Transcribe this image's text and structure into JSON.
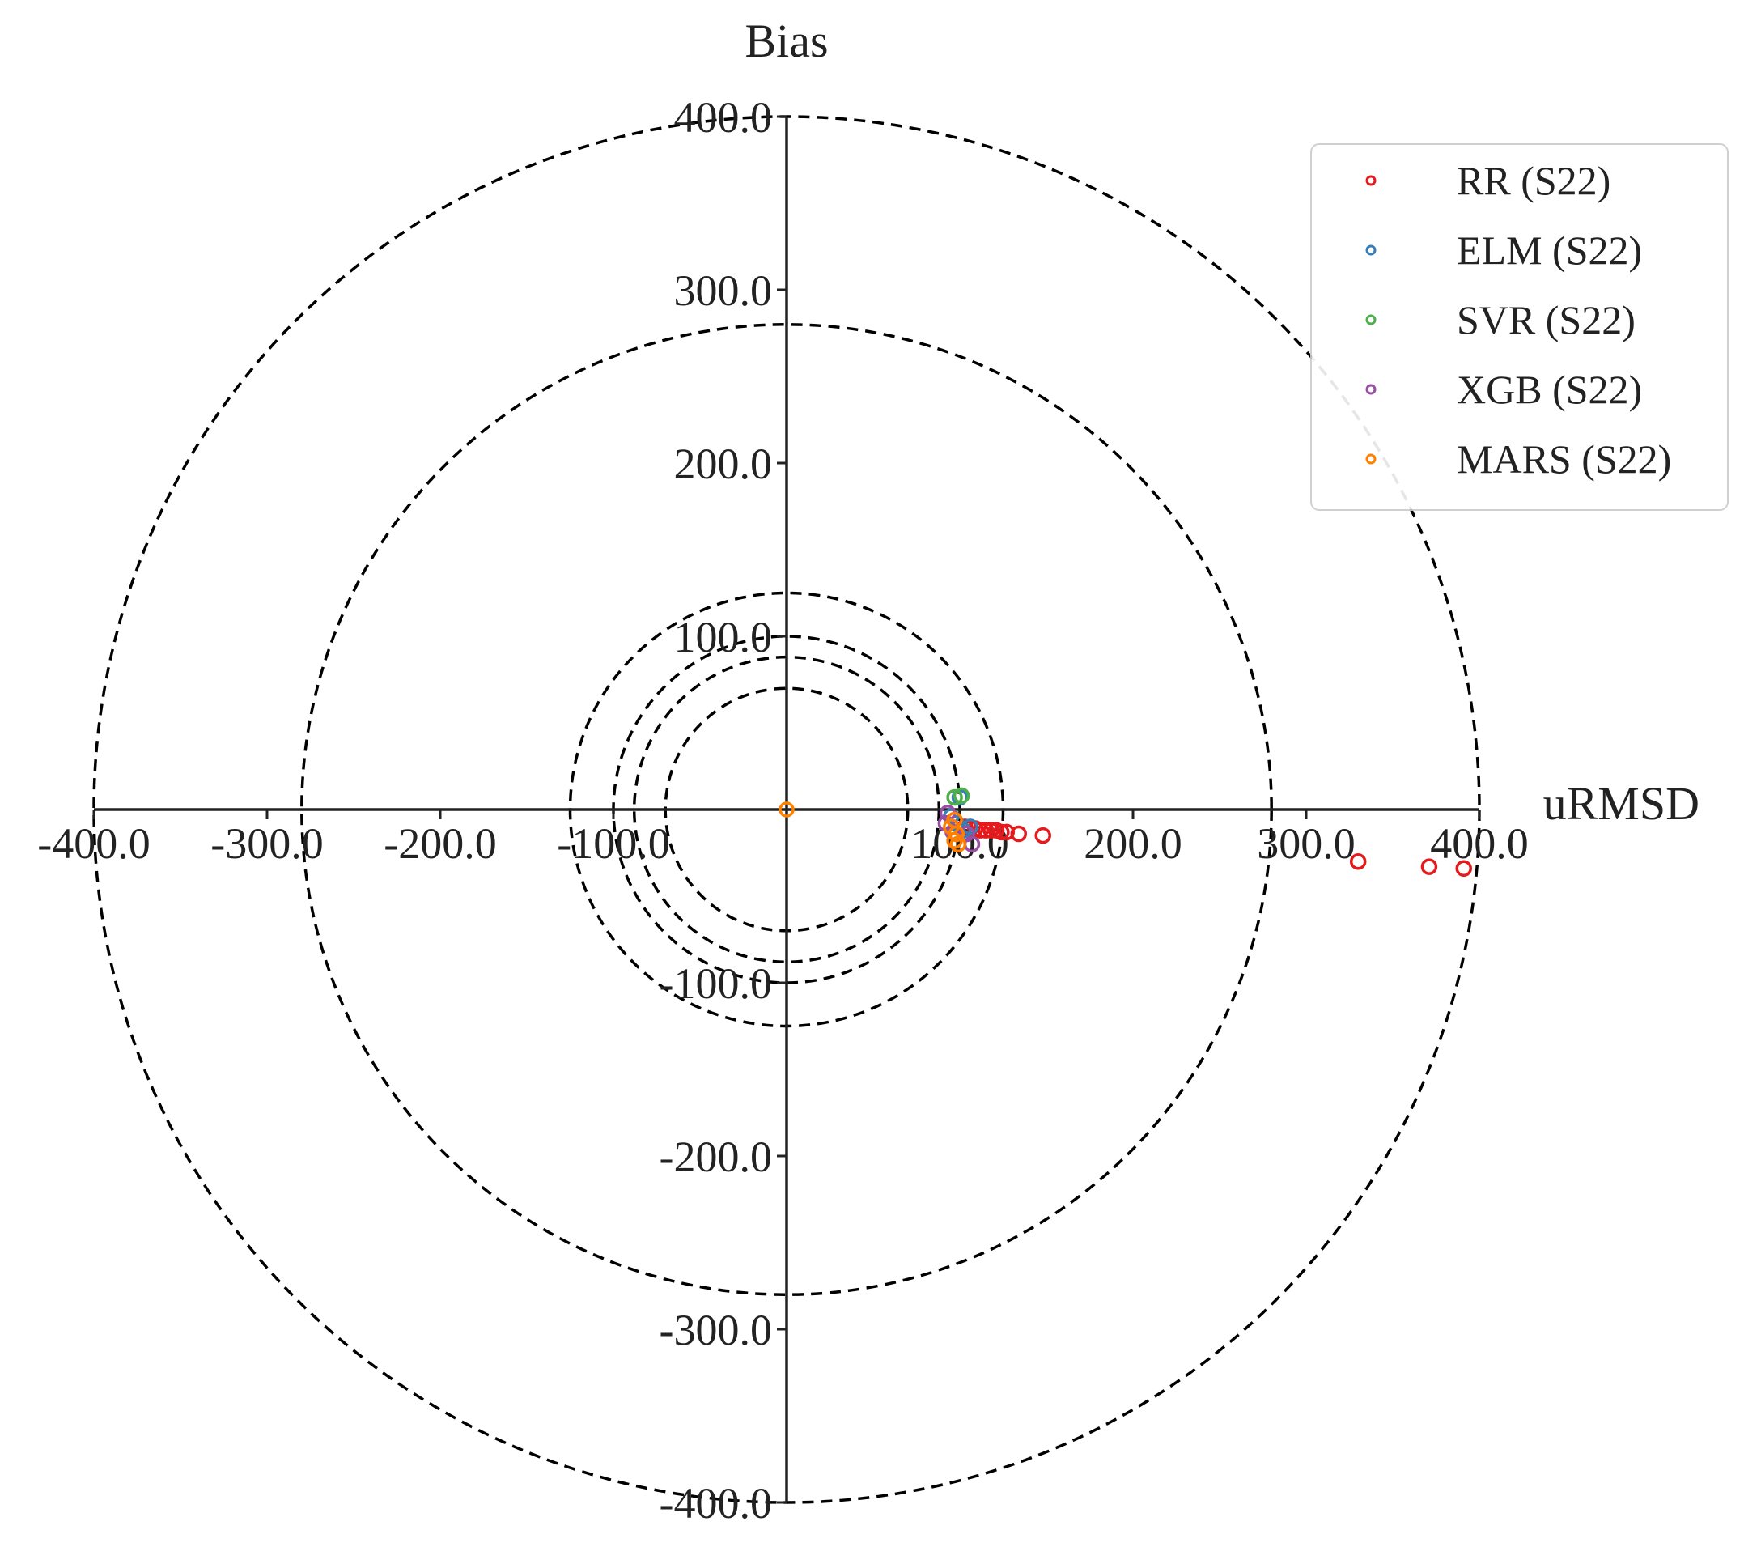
{
  "chart_data": {
    "type": "scatter",
    "subtype": "target-diagram",
    "xlabel": "uRMSD",
    "ylabel": "Bias",
    "xlim": [
      -400,
      400
    ],
    "ylim": [
      -400,
      400
    ],
    "x_ticks": [
      -400,
      -300,
      -200,
      -100,
      100,
      200,
      300,
      400
    ],
    "y_ticks": [
      400,
      300,
      200,
      100,
      -100,
      -200,
      -300,
      -400
    ],
    "x_tick_labels": [
      "-400.0",
      "-300.0",
      "-200.0",
      "-100.0",
      "100.0",
      "200.0",
      "300.0",
      "400.0"
    ],
    "y_tick_labels": [
      "400.0",
      "300.0",
      "200.0",
      "100.0",
      "-100.0",
      "-200.0",
      "-300.0",
      "-400.0"
    ],
    "reference_circles": [
      70,
      88,
      100,
      125,
      280,
      400
    ],
    "grid": false,
    "legend_position": "top-right",
    "reference_point": {
      "x": 0,
      "y": 0,
      "color": "#ff7f00"
    },
    "series": [
      {
        "name": "RR (S22)",
        "color": "#e41a1c",
        "points": [
          [
            330,
            -30
          ],
          [
            371,
            -33
          ],
          [
            391,
            -34
          ],
          [
            148,
            -15
          ],
          [
            134,
            -14
          ],
          [
            127,
            -13
          ],
          [
            124,
            -13
          ],
          [
            121,
            -12
          ],
          [
            118,
            -12
          ],
          [
            115,
            -12
          ],
          [
            112,
            -12
          ],
          [
            109,
            -11
          ],
          [
            106,
            -11
          ],
          [
            103,
            -10
          ]
        ]
      },
      {
        "name": "ELM (S22)",
        "color": "#377eb8",
        "points": [
          [
            100,
            7
          ],
          [
            106,
            -10
          ],
          [
            102,
            -12
          ],
          [
            98,
            -8
          ],
          [
            95,
            -4
          ]
        ]
      },
      {
        "name": "SVR (S22)",
        "color": "#4daf4a",
        "points": [
          [
            97,
            7
          ],
          [
            101,
            8
          ]
        ]
      },
      {
        "name": "XGB (S22)",
        "color": "#984ea3",
        "points": [
          [
            107,
            -20
          ],
          [
            104,
            -14
          ],
          [
            93,
            -2
          ],
          [
            92,
            -8
          ],
          [
            96,
            -13
          ]
        ]
      },
      {
        "name": "MARS (S22)",
        "color": "#ff7f00",
        "points": [
          [
            98,
            -14
          ],
          [
            97,
            -18
          ],
          [
            99,
            -20
          ],
          [
            95,
            -10
          ],
          [
            97,
            -6
          ]
        ]
      }
    ]
  }
}
